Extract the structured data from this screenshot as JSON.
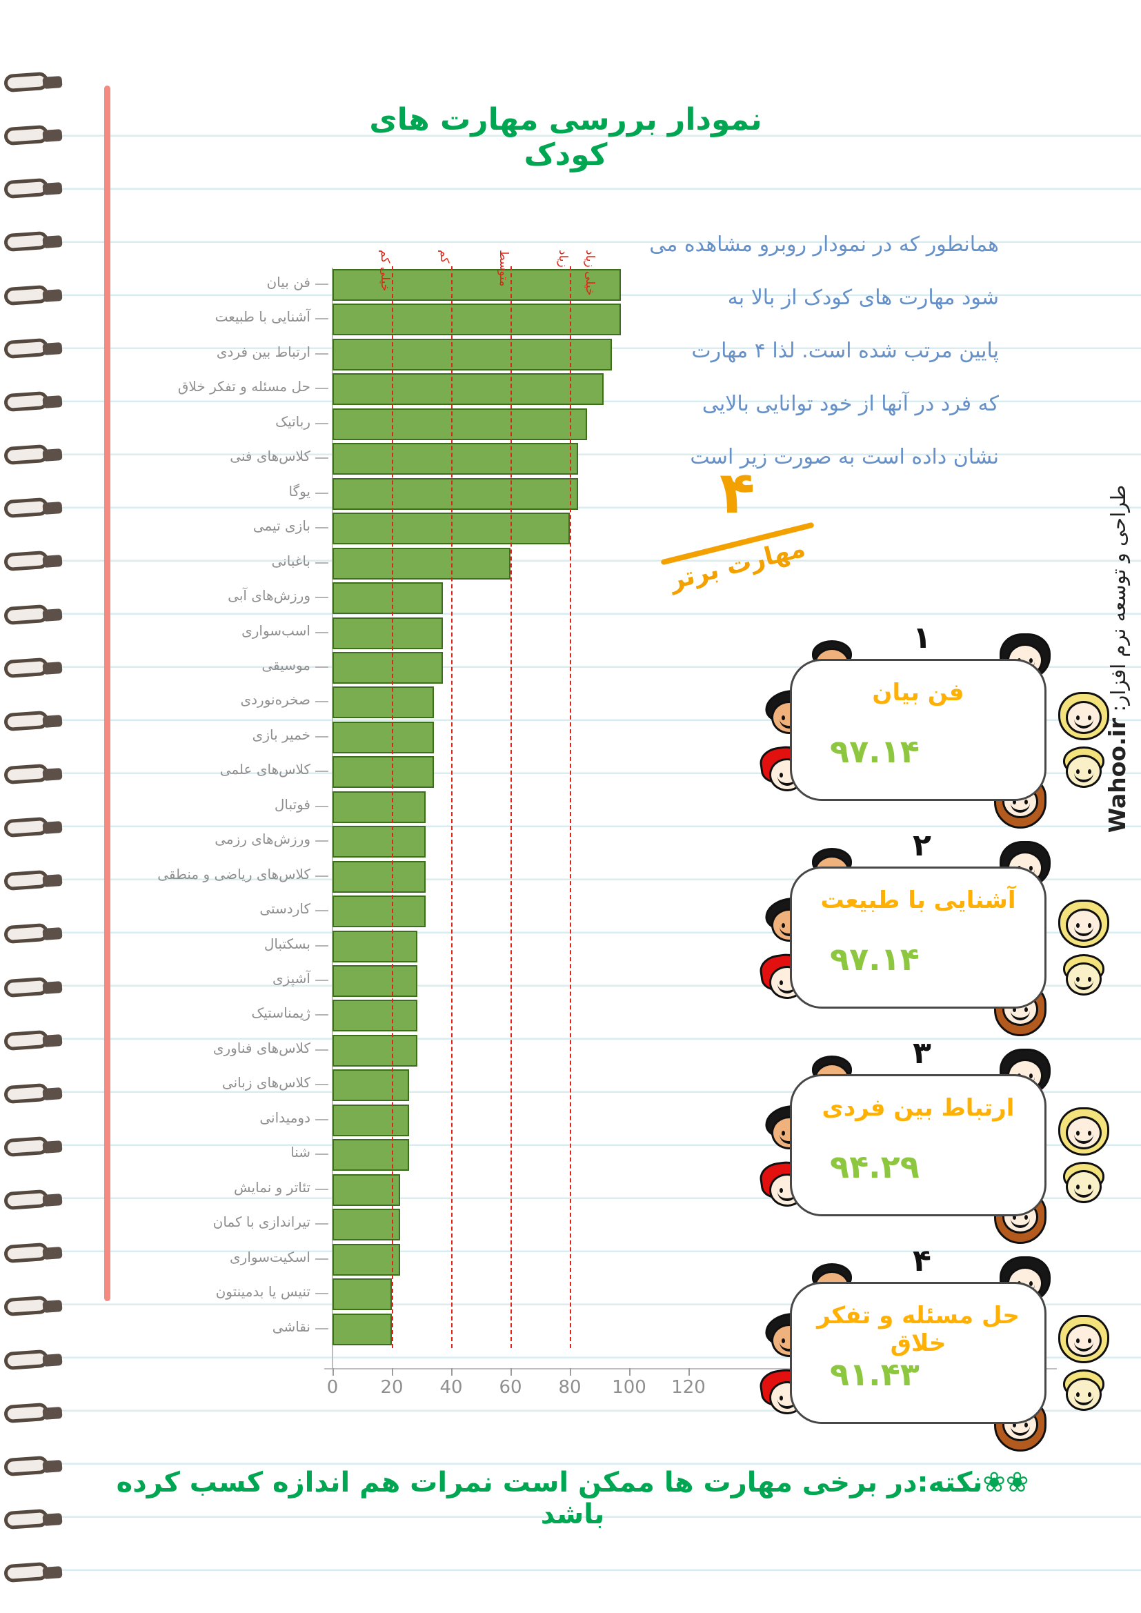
{
  "title": "نمودار بررسی مهارت های کودک",
  "intro": {
    "lines": [
      "همانطور که در نمودار روبرو مشاهده می",
      "شود مهارت های کودک از بالا به",
      "پایین  مرتب شده است. لذا ۴ مهارت",
      "که فرد در آنها از خود توانایی بالایی",
      "نشان داده است به صورت زیر است"
    ]
  },
  "top_skills": {
    "count_label": "۴",
    "caption": "مهارت برتر"
  },
  "cards": [
    {
      "rank": "۱",
      "title": "فن بیان",
      "score": "۹۷.۱۴"
    },
    {
      "rank": "۲",
      "title": "آشنایی با طبیعت",
      "score": "۹۷.۱۴"
    },
    {
      "rank": "۳",
      "title": "ارتباط بین فردی",
      "score": "۹۴.۲۹"
    },
    {
      "rank": "۴",
      "title": "حل مسئله و تفکر خلاق",
      "score": "۹۱.۴۳"
    }
  ],
  "note": "❀❀نکته:در برخی مهارت ها ممکن است نمرات هم اندازه کسب کرده باشد",
  "credit": {
    "label": "طراحی و توسعه نرم افزار:",
    "brand": "Wahoo.ir"
  },
  "chart_data": {
    "type": "bar",
    "orientation": "horizontal",
    "title": "نمودار بررسی مهارت های کودک",
    "categories": [
      "فن بیان",
      "آشنایی با طبیعت",
      "ارتباط بین فردی",
      "حل مسئله و تفکر خلاق",
      "رباتیک",
      "کلاس‌های فنی",
      "یوگا",
      "بازی تیمی",
      "باغبانی",
      "ورزش‌های آبی",
      "اسب‌سواری",
      "موسیقی",
      "صخره‌نوردی",
      "خمیر بازی",
      "کلاس‌های علمی",
      "فوتبال",
      "ورزش‌های رزمی",
      "کلاس‌های ریاضی و منطقی",
      "کاردستی",
      "بسکتبال",
      "آشپزی",
      "ژیمناستیک",
      "کلاس‌های فناوری",
      "کلاس‌های زبانی",
      "دومیدانی",
      "شنا",
      "تئاتر و نمایش",
      "تیراندازی با کمان",
      "اسکیت‌سواری",
      "تنیس یا بدمینتون",
      "نقاشی"
    ],
    "values": [
      97.14,
      97.14,
      94.29,
      91.43,
      85.71,
      82.86,
      82.86,
      80,
      60,
      37.14,
      37.14,
      37.14,
      34.29,
      34.29,
      34.29,
      31.43,
      31.43,
      31.43,
      31.43,
      28.57,
      28.57,
      28.57,
      28.57,
      25.71,
      25.71,
      25.71,
      22.86,
      22.86,
      22.86,
      20,
      20
    ],
    "xlim": [
      0,
      120
    ],
    "x_ticks": [
      0,
      20,
      40,
      60,
      80,
      100,
      120
    ],
    "guide_values": [
      20,
      40,
      60,
      80
    ],
    "zone_labels": [
      {
        "text": "خیلی کم",
        "at": 20
      },
      {
        "text": "کم",
        "at": 40
      },
      {
        "text": "متوسط",
        "at": 60
      },
      {
        "text": "زیاد",
        "at": 80
      },
      {
        "text": "خیلی زیاد",
        "at": 89
      }
    ],
    "legend": null,
    "grid": "ruled-paper-horizontal",
    "bar_color": "#79ad4f",
    "bar_border_color": "#3c6e1d",
    "guide_color": "#e02416"
  },
  "decor": {
    "coil_count": 29,
    "faces": [
      {
        "name": "boy-black-hair",
        "style": "boy",
        "hair": "#161616",
        "skin": "#efb27c"
      },
      {
        "name": "girl-black-bob",
        "style": "bob",
        "hair": "#161616",
        "skin": "#fdeedd"
      },
      {
        "name": "boy-black-wavy",
        "style": "wavy",
        "hair": "#161616",
        "skin": "#efb27c"
      },
      {
        "name": "kid-red-curly",
        "style": "curly",
        "hair": "#e31010",
        "skin": "#fdeedd"
      },
      {
        "name": "girl-blonde",
        "style": "blonde-girl",
        "hair": "#f4e27c",
        "skin": "#fdeedd"
      },
      {
        "name": "boy-blonde",
        "style": "blonde-boy",
        "hair": "#f4e27c",
        "skin": "#faf0c8"
      },
      {
        "name": "girl-auburn",
        "style": "auburn",
        "hair": "#b35a1e",
        "skin": "#fdeedd"
      }
    ]
  },
  "colors": {
    "title_green": "#00a651",
    "note_green": "#00a651",
    "intro_blue": "#6590c8",
    "gold": "#f2a100",
    "card_title_gold": "#ffb005",
    "score_green": "#8dc63f",
    "bar_fill": "#79ad4f",
    "bar_border": "#3c6e1d",
    "guide_red": "#e02416",
    "axis_gray": "#8f8f8f",
    "ruled_line": "#d9edf0",
    "margin_line": "#f58a80"
  }
}
